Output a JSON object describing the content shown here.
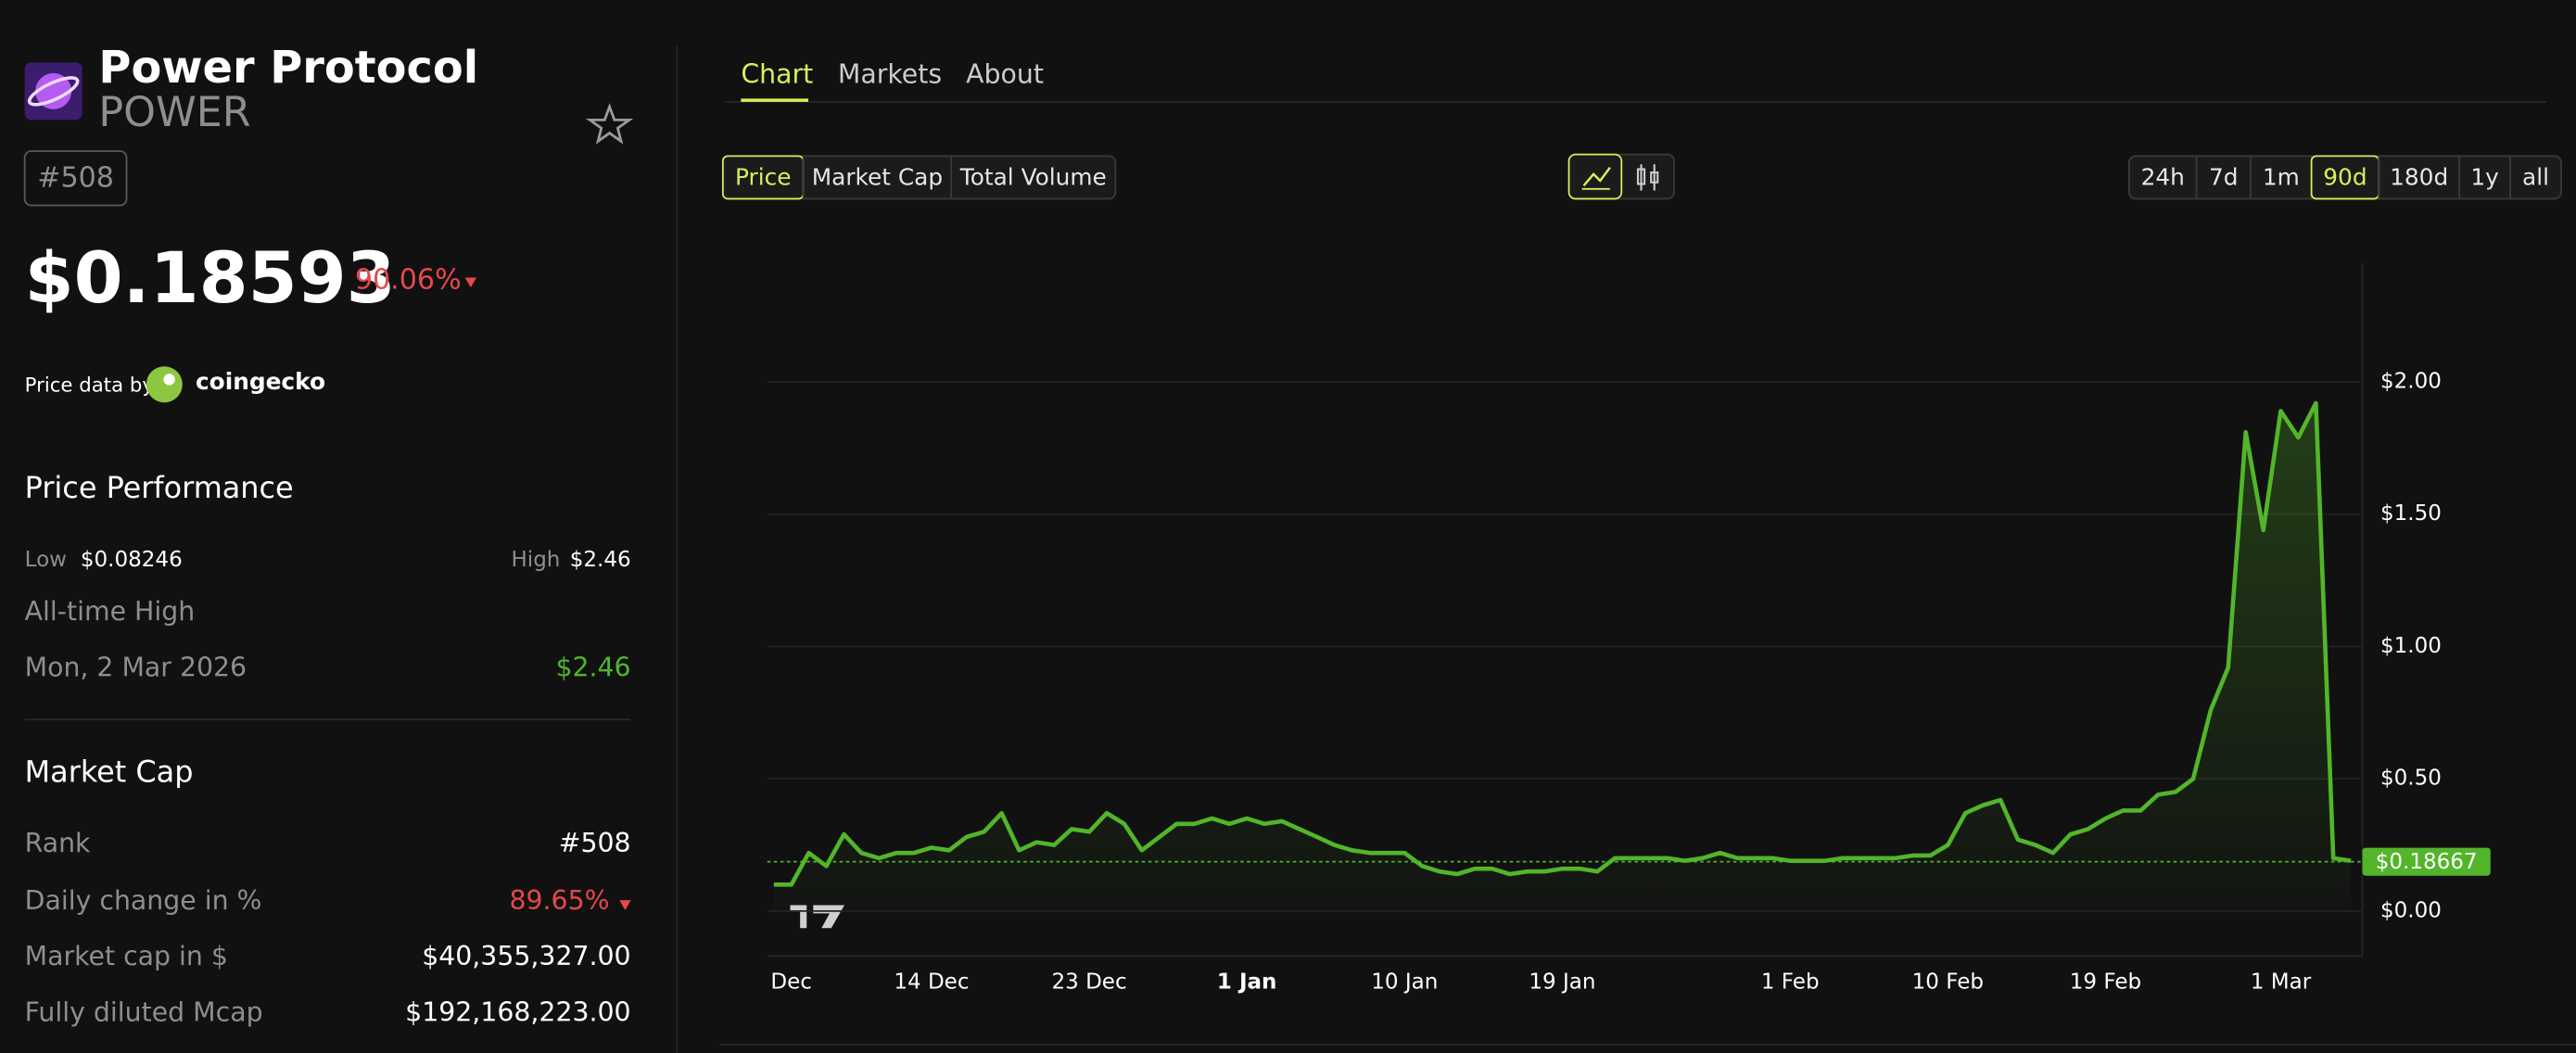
{
  "header": {
    "name": "Power Protocol",
    "symbol": "POWER",
    "rank": "#508"
  },
  "price": {
    "value": "$0.18593",
    "change": "90.06%"
  },
  "attribution": {
    "prefix": "Price data by",
    "source": "coingecko"
  },
  "price_performance": {
    "title": "Price Performance",
    "low_label": "Low",
    "low": "$0.08246",
    "high_label": "High",
    "high": "$2.46",
    "ath_label": "All-time High",
    "ath_date": "Mon, 2 Mar 2026",
    "ath_value": "$2.46"
  },
  "market_cap": {
    "title": "Market Cap",
    "rows": [
      [
        "Rank",
        "#508"
      ],
      [
        "Daily change in %",
        "89.65%"
      ],
      [
        "Market cap in $",
        "$40,355,327.00"
      ],
      [
        "Fully diluted Mcap",
        "$192,168,223.00"
      ]
    ]
  },
  "tabs": [
    "Chart",
    "Markets",
    "About"
  ],
  "metric_buttons": [
    "Price",
    "Market Cap",
    "Total Volume"
  ],
  "range_buttons": [
    "24h",
    "7d",
    "1m",
    "90d",
    "180d",
    "1y",
    "all"
  ],
  "chart_data": {
    "type": "line",
    "color": "#52b52a",
    "categories": [
      null,
      "Dec",
      null,
      null,
      null,
      null,
      null,
      null,
      null,
      "14 Dec",
      null,
      null,
      null,
      null,
      null,
      null,
      null,
      null,
      "23 Dec",
      null,
      null,
      null,
      null,
      null,
      null,
      null,
      null,
      "1 Jan",
      null,
      null,
      null,
      null,
      null,
      null,
      null,
      null,
      "10 Jan",
      null,
      null,
      null,
      null,
      null,
      null,
      null,
      null,
      "19 Jan",
      null,
      null,
      null,
      null,
      null,
      null,
      null,
      null,
      null,
      null,
      null,
      null,
      "1 Feb",
      null,
      null,
      null,
      null,
      null,
      null,
      null,
      null,
      "10 Feb",
      null,
      null,
      null,
      null,
      null,
      null,
      null,
      null,
      "19 Feb",
      null,
      null,
      null,
      null,
      null,
      null,
      null,
      null,
      null,
      "1 Mar",
      null,
      null,
      null,
      null
    ],
    "values": [
      0.1,
      0.1,
      0.22,
      0.17,
      0.29,
      0.22,
      0.2,
      0.22,
      0.22,
      0.24,
      0.23,
      0.28,
      0.3,
      0.37,
      0.23,
      0.26,
      0.25,
      0.31,
      0.3,
      0.37,
      0.33,
      0.23,
      0.28,
      0.33,
      0.33,
      0.35,
      0.33,
      0.35,
      0.33,
      0.34,
      0.31,
      0.28,
      0.25,
      0.23,
      0.22,
      0.22,
      0.22,
      0.17,
      0.15,
      0.14,
      0.16,
      0.16,
      0.14,
      0.15,
      0.15,
      0.16,
      0.16,
      0.15,
      0.2,
      0.2,
      0.2,
      0.2,
      0.19,
      0.2,
      0.22,
      0.2,
      0.2,
      0.2,
      0.19,
      0.19,
      0.19,
      0.2,
      0.2,
      0.2,
      0.2,
      0.21,
      0.21,
      0.25,
      0.37,
      0.4,
      0.42,
      0.27,
      0.25,
      0.22,
      0.29,
      0.31,
      0.35,
      0.38,
      0.38,
      0.44,
      0.45,
      0.5,
      0.76,
      0.92,
      1.81,
      1.44,
      1.89,
      1.79,
      1.92,
      0.2,
      0.19
    ],
    "ylim": [
      -0.17,
      2.45
    ],
    "yticks": [
      {
        "value": 0,
        "label": "$0.00"
      },
      {
        "value": 0.5,
        "label": "$0.50"
      },
      {
        "value": 1,
        "label": "$1.00"
      },
      {
        "value": 1.5,
        "label": "$1.50"
      },
      {
        "value": 2,
        "label": "$2.00"
      }
    ],
    "grid": true,
    "last_price": {
      "value": 0.18667,
      "label": "$0.18667"
    }
  }
}
